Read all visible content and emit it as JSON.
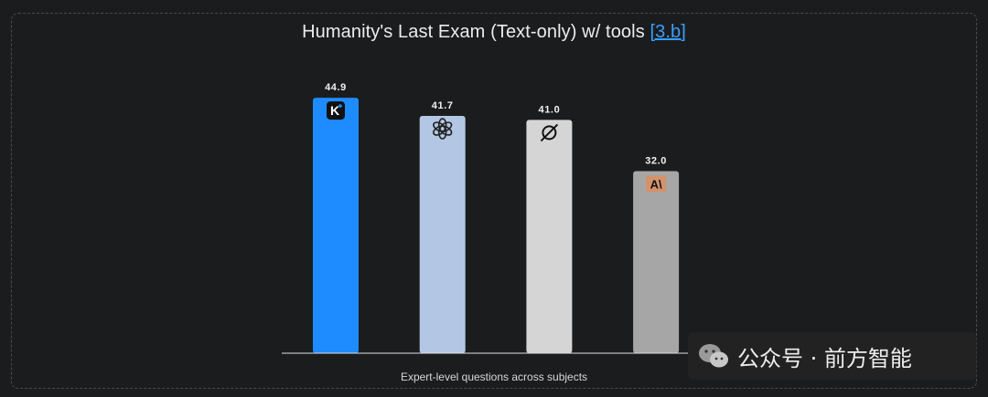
{
  "chart_data": {
    "type": "bar",
    "title": "Humanity's Last Exam (Text-only) w/ tools",
    "title_ref": "[3.b]",
    "xlabel": "Expert-level questions across subjects",
    "ylabel": "",
    "ylim": [
      0,
      47
    ],
    "grid": false,
    "categories": [
      "kimi-icon",
      "openai-icon",
      "grok-icon",
      "anthropic-icon"
    ],
    "values": [
      44.9,
      41.7,
      41.0,
      32.0
    ],
    "value_labels": [
      "44.9",
      "41.7",
      "41.0",
      "32.0"
    ],
    "colors": [
      "#1e8cff",
      "#b3c7e4",
      "#d5d5d5",
      "#a6a6a6"
    ]
  },
  "watermark": {
    "text": "公众号 · 前方智能",
    "icon": "wechat-icon"
  }
}
